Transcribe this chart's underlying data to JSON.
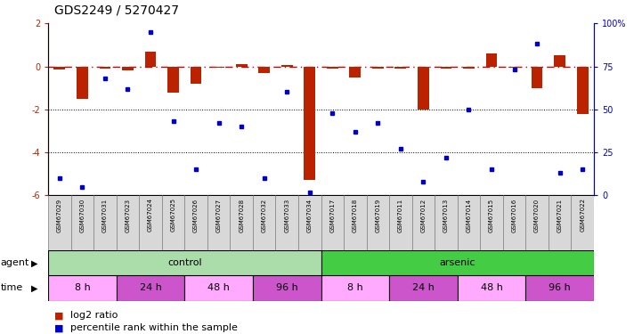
{
  "title": "GDS2249 / 5270427",
  "samples": [
    "GSM67029",
    "GSM67030",
    "GSM67031",
    "GSM67023",
    "GSM67024",
    "GSM67025",
    "GSM67026",
    "GSM67027",
    "GSM67028",
    "GSM67032",
    "GSM67033",
    "GSM67034",
    "GSM67017",
    "GSM67018",
    "GSM67019",
    "GSM67011",
    "GSM67012",
    "GSM67013",
    "GSM67014",
    "GSM67015",
    "GSM67016",
    "GSM67020",
    "GSM67021",
    "GSM67022"
  ],
  "log2_ratio": [
    -0.15,
    -1.5,
    -0.1,
    -0.2,
    0.7,
    -1.2,
    -0.8,
    -0.05,
    0.12,
    -0.3,
    0.05,
    -5.3,
    -0.1,
    -0.5,
    -0.1,
    -0.1,
    -2.0,
    -0.1,
    -0.1,
    0.6,
    -0.08,
    -1.0,
    0.5,
    -2.2
  ],
  "percentile": [
    10,
    5,
    68,
    62,
    95,
    43,
    15,
    42,
    40,
    10,
    60,
    2,
    48,
    37,
    42,
    27,
    8,
    22,
    50,
    15,
    73,
    88,
    13,
    15
  ],
  "agent_groups": [
    {
      "label": "control",
      "start": 0,
      "end": 11,
      "color": "#AADDAA"
    },
    {
      "label": "arsenic",
      "start": 12,
      "end": 23,
      "color": "#44CC44"
    }
  ],
  "time_groups": [
    {
      "label": "8 h",
      "start": 0,
      "end": 2,
      "color": "#FFAAFF"
    },
    {
      "label": "24 h",
      "start": 3,
      "end": 5,
      "color": "#CC55CC"
    },
    {
      "label": "48 h",
      "start": 6,
      "end": 8,
      "color": "#FFAAFF"
    },
    {
      "label": "96 h",
      "start": 9,
      "end": 11,
      "color": "#CC55CC"
    },
    {
      "label": "8 h",
      "start": 12,
      "end": 14,
      "color": "#FFAAFF"
    },
    {
      "label": "24 h",
      "start": 15,
      "end": 17,
      "color": "#CC55CC"
    },
    {
      "label": "48 h",
      "start": 18,
      "end": 20,
      "color": "#FFAAFF"
    },
    {
      "label": "96 h",
      "start": 21,
      "end": 23,
      "color": "#CC55CC"
    }
  ],
  "ylim_left": [
    -6,
    2
  ],
  "ylim_right": [
    0,
    100
  ],
  "bar_color": "#BB2200",
  "dot_color": "#0000CC",
  "hline_color": "#CC0000",
  "dotline_color": "black",
  "label_bg_color": "#D8D8D8",
  "title_fontsize": 10,
  "tick_fontsize": 7,
  "sample_fontsize": 5,
  "annot_fontsize": 8,
  "legend_fontsize": 8
}
